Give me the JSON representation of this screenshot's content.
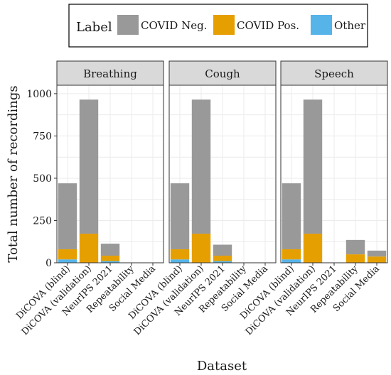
{
  "chart_data": {
    "type": "bar",
    "stacked": true,
    "legend": {
      "title": "Label",
      "placement": "top",
      "entries": [
        {
          "label": "COVID Neg.",
          "color": "#999999"
        },
        {
          "label": "COVID Pos.",
          "color": "#E69F00"
        },
        {
          "label": "Other",
          "color": "#56B4E9"
        }
      ]
    },
    "xlabel": "Dataset",
    "ylabel": "Total number of recordings",
    "ylim": [
      0,
      1050
    ],
    "yticks": [
      0,
      250,
      500,
      750,
      1000
    ],
    "grid": true,
    "categories": [
      "DiCOVA (blind)",
      "DiCOVA (validation)",
      "NeurIPS 2021",
      "Repeatability",
      "Social Media"
    ],
    "panels": [
      {
        "title": "Breathing",
        "series": [
          {
            "name": "Other",
            "values": [
              20,
              0,
              10,
              0,
              0
            ]
          },
          {
            "name": "COVID Pos.",
            "values": [
              60,
              172,
              32,
              0,
              0
            ]
          },
          {
            "name": "COVID Neg.",
            "values": [
              390,
              793,
              71,
              0,
              0
            ]
          }
        ]
      },
      {
        "title": "Cough",
        "series": [
          {
            "name": "Other",
            "values": [
              20,
              0,
              10,
              0,
              0
            ]
          },
          {
            "name": "COVID Pos.",
            "values": [
              60,
              172,
              32,
              0,
              0
            ]
          },
          {
            "name": "COVID Neg.",
            "values": [
              390,
              793,
              65,
              0,
              0
            ]
          }
        ]
      },
      {
        "title": "Speech",
        "series": [
          {
            "name": "Other",
            "values": [
              20,
              0,
              0,
              0,
              0
            ]
          },
          {
            "name": "COVID Pos.",
            "values": [
              60,
              172,
              0,
              50,
              37
            ]
          },
          {
            "name": "COVID Neg.",
            "values": [
              390,
              793,
              0,
              85,
              35
            ]
          }
        ]
      }
    ]
  }
}
